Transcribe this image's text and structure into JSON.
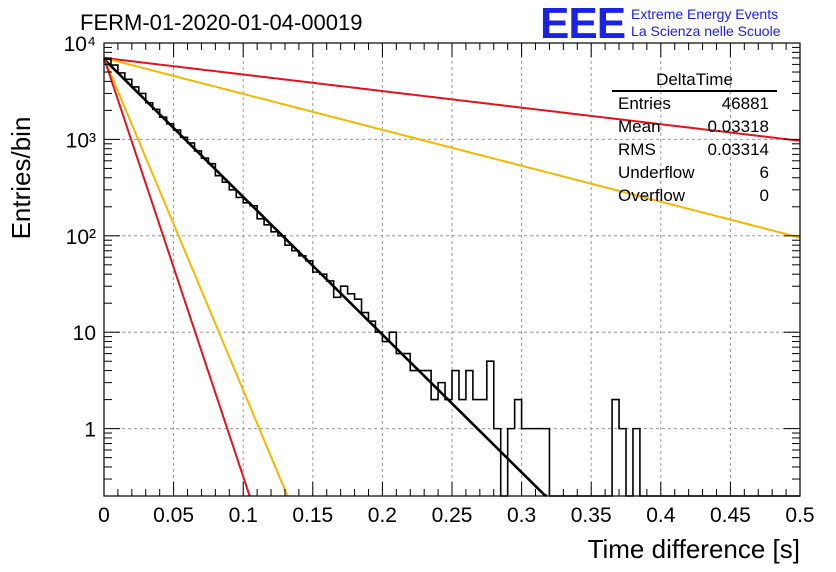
{
  "title": "FERM-01-2020-01-04-00019",
  "logo": {
    "mark": "EEE",
    "line1": "Extreme Energy Events",
    "line2": "La Scienza nelle Scuole",
    "color": "#1a22e6"
  },
  "stats_box": {
    "title": "DeltaTime",
    "rows": [
      {
        "label": "Entries",
        "value": "46881"
      },
      {
        "label": "Mean",
        "value": "0.03318"
      },
      {
        "label": "RMS",
        "value": "0.03314"
      },
      {
        "label": "Underflow",
        "value": "6"
      },
      {
        "label": "Overflow",
        "value": "0"
      }
    ]
  },
  "chart_data": {
    "type": "histogram",
    "title": "FERM-01-2020-01-04-00019",
    "xlabel": "Time difference [s]",
    "ylabel": "Entries/bin",
    "xlim": [
      0,
      0.5
    ],
    "ylim": [
      0.2,
      10000
    ],
    "yscale": "log",
    "grid": true,
    "x_ticks": [
      "0",
      "0.05",
      "0.1",
      "0.15",
      "0.2",
      "0.25",
      "0.3",
      "0.35",
      "0.4",
      "0.45",
      "0.5"
    ],
    "y_ticks": [
      "1",
      "10",
      "10²",
      "10³",
      "10⁴"
    ],
    "histogram": {
      "bin_width": 0.005,
      "x_start": 0,
      "color": "#000000",
      "counts": [
        6800,
        5800,
        4700,
        4100,
        3400,
        2800,
        2450,
        2100,
        1700,
        1500,
        1250,
        1050,
        900,
        780,
        620,
        520,
        460,
        380,
        320,
        270,
        230,
        200,
        160,
        140,
        120,
        100,
        85,
        70,
        60,
        55,
        47,
        40,
        35,
        30,
        26,
        22,
        20,
        17,
        14,
        13,
        11,
        9,
        7,
        8,
        6,
        5,
        4.6,
        3.9,
        3.4,
        2.9,
        2.5,
        2.3,
        1.9,
        1.6,
        1.4,
        1.2,
        1.0,
        0.9,
        0.8,
        0.75,
        0.7
      ]
    },
    "histogram_override_counts": [
      6800,
      5900,
      4900,
      4200,
      3500,
      3000,
      2400,
      2050,
      1700,
      1450,
      1250,
      1050,
      920,
      760,
      640,
      560,
      420,
      360,
      300,
      250,
      220,
      205,
      150,
      130,
      110,
      100,
      80,
      70,
      62,
      55,
      42,
      40,
      34,
      23,
      30,
      25,
      22,
      16,
      13,
      10,
      8,
      10,
      6,
      6,
      4,
      4,
      4,
      2,
      3,
      2,
      4,
      2,
      4,
      2,
      2,
      5,
      1,
      0,
      1,
      2,
      1,
      1,
      1,
      1,
      0,
      0,
      0,
      0,
      0,
      0,
      0,
      0,
      0,
      2,
      1,
      0,
      1,
      0,
      0,
      0,
      0,
      0,
      0,
      0,
      0,
      0,
      0,
      0,
      0,
      0,
      0,
      0,
      0,
      0,
      0,
      0,
      0,
      0,
      0,
      0
    ],
    "fits": [
      {
        "color": "#000000",
        "y0": 6800,
        "tau": 0.0304,
        "x_range": [
          0,
          0.355
        ]
      },
      {
        "color": "#e0141e",
        "y0": 7000,
        "tau": 0.2526,
        "x_range": [
          0,
          0.5
        ]
      },
      {
        "color": "#f5b800",
        "y0": 7000,
        "tau": 0.1165,
        "x_range": [
          0,
          0.5
        ]
      },
      {
        "color": "#f5b800",
        "y0": 7000,
        "tau": 0.0126,
        "x_range": [
          0,
          0.14
        ]
      },
      {
        "color": "#e0141e",
        "y0": 7000,
        "tau": 0.01,
        "x_range": [
          0,
          0.11
        ]
      }
    ]
  }
}
